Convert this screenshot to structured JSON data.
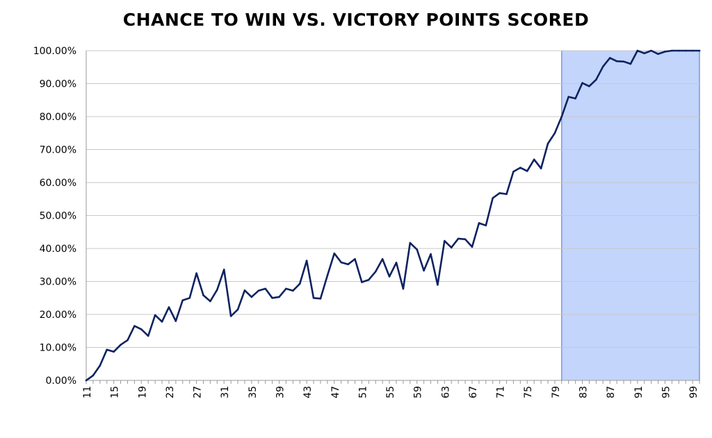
{
  "chart_data": {
    "type": "line",
    "title": "CHANCE TO WIN VS. VICTORY POINTS SCORED",
    "xlabel": "",
    "ylabel": "",
    "ylim": [
      0,
      1
    ],
    "xlim": [
      11,
      100
    ],
    "y_ticks": [
      "0.00%",
      "10.00%",
      "20.00%",
      "30.00%",
      "40.00%",
      "50.00%",
      "60.00%",
      "70.00%",
      "80.00%",
      "90.00%",
      "100.00%"
    ],
    "x_tick_labels": [
      "11",
      "15",
      "19",
      "23",
      "27",
      "31",
      "35",
      "39",
      "43",
      "47",
      "51",
      "55",
      "59",
      "63",
      "67",
      "71",
      "75",
      "79",
      "83",
      "87",
      "91",
      "95",
      "99"
    ],
    "grid": "horizontal",
    "highlight_range": [
      80,
      100
    ],
    "colors": {
      "line": "#0d2260",
      "highlight_fill": "#c3d5fb",
      "highlight_stroke": "#4a6fc8",
      "grid": "#c8c8c8"
    },
    "series": [
      {
        "x": [
          11,
          12,
          13,
          14,
          15,
          16,
          17,
          18,
          19,
          20,
          21,
          22,
          23,
          24,
          25,
          26,
          27,
          28,
          29,
          30,
          31,
          32,
          33,
          34,
          35,
          36,
          37,
          38,
          39,
          40,
          41,
          42,
          43,
          44,
          45,
          46,
          47,
          48,
          49,
          50,
          51,
          52,
          53,
          54,
          55,
          56,
          57,
          58,
          59,
          60,
          61,
          62,
          63,
          64,
          65,
          66,
          67,
          68,
          69,
          70,
          71,
          72,
          73,
          74,
          75,
          76,
          77,
          78,
          79,
          80,
          81,
          82,
          83,
          84,
          85,
          86,
          87,
          88,
          89,
          90,
          91,
          92,
          93,
          94,
          95,
          96,
          97,
          98,
          99,
          100
        ],
        "values": [
          0.0,
          0.015,
          0.045,
          0.093,
          0.087,
          0.108,
          0.122,
          0.165,
          0.155,
          0.135,
          0.198,
          0.178,
          0.222,
          0.18,
          0.243,
          0.25,
          0.325,
          0.258,
          0.24,
          0.275,
          0.336,
          0.195,
          0.215,
          0.273,
          0.253,
          0.272,
          0.278,
          0.25,
          0.253,
          0.278,
          0.272,
          0.293,
          0.363,
          0.25,
          0.248,
          0.318,
          0.385,
          0.358,
          0.352,
          0.368,
          0.298,
          0.305,
          0.33,
          0.368,
          0.315,
          0.357,
          0.278,
          0.417,
          0.397,
          0.333,
          0.383,
          0.29,
          0.423,
          0.403,
          0.43,
          0.428,
          0.405,
          0.477,
          0.47,
          0.553,
          0.568,
          0.565,
          0.633,
          0.645,
          0.635,
          0.67,
          0.643,
          0.718,
          0.75,
          0.8,
          0.86,
          0.855,
          0.902,
          0.892,
          0.912,
          0.952,
          0.978,
          0.968,
          0.967,
          0.96,
          1.0,
          0.992,
          1.0,
          0.99,
          0.997,
          1.0,
          1.0,
          1.0,
          1.0,
          1.0
        ]
      }
    ]
  }
}
